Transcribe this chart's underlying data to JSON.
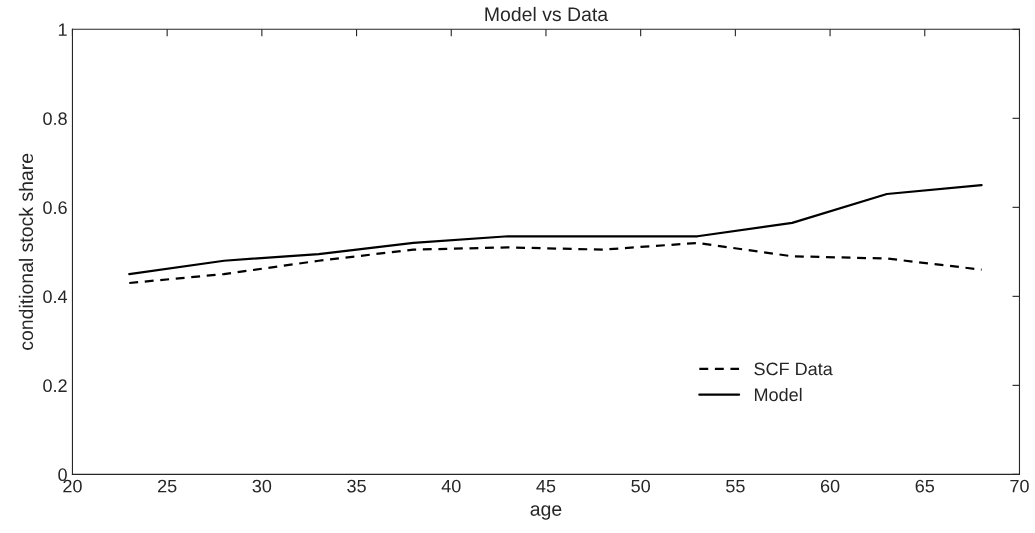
{
  "chart_data": {
    "type": "line",
    "title": "Model vs Data",
    "xlabel": "age",
    "ylabel": "conditional stock share",
    "x": [
      23,
      28,
      33,
      38,
      43,
      48,
      53,
      58,
      63,
      68
    ],
    "series": [
      {
        "name": "SCF Data",
        "color": "#000000",
        "line_style": "dashed",
        "values": [
          0.43,
          0.45,
          0.48,
          0.505,
          0.51,
          0.505,
          0.52,
          0.49,
          0.485,
          0.46
        ]
      },
      {
        "name": "Model",
        "color": "#000000",
        "line_style": "solid",
        "values": [
          0.45,
          0.48,
          0.495,
          0.52,
          0.535,
          0.535,
          0.535,
          0.565,
          0.63,
          0.65
        ]
      }
    ],
    "xlim": [
      20,
      70
    ],
    "xticks": [
      20,
      25,
      30,
      35,
      40,
      45,
      50,
      55,
      60,
      65,
      70
    ],
    "ylim": [
      0,
      1
    ],
    "yticks": [
      0,
      0.2,
      0.4,
      0.6,
      0.8,
      1
    ],
    "grid": false,
    "legend": "bottom right"
  }
}
